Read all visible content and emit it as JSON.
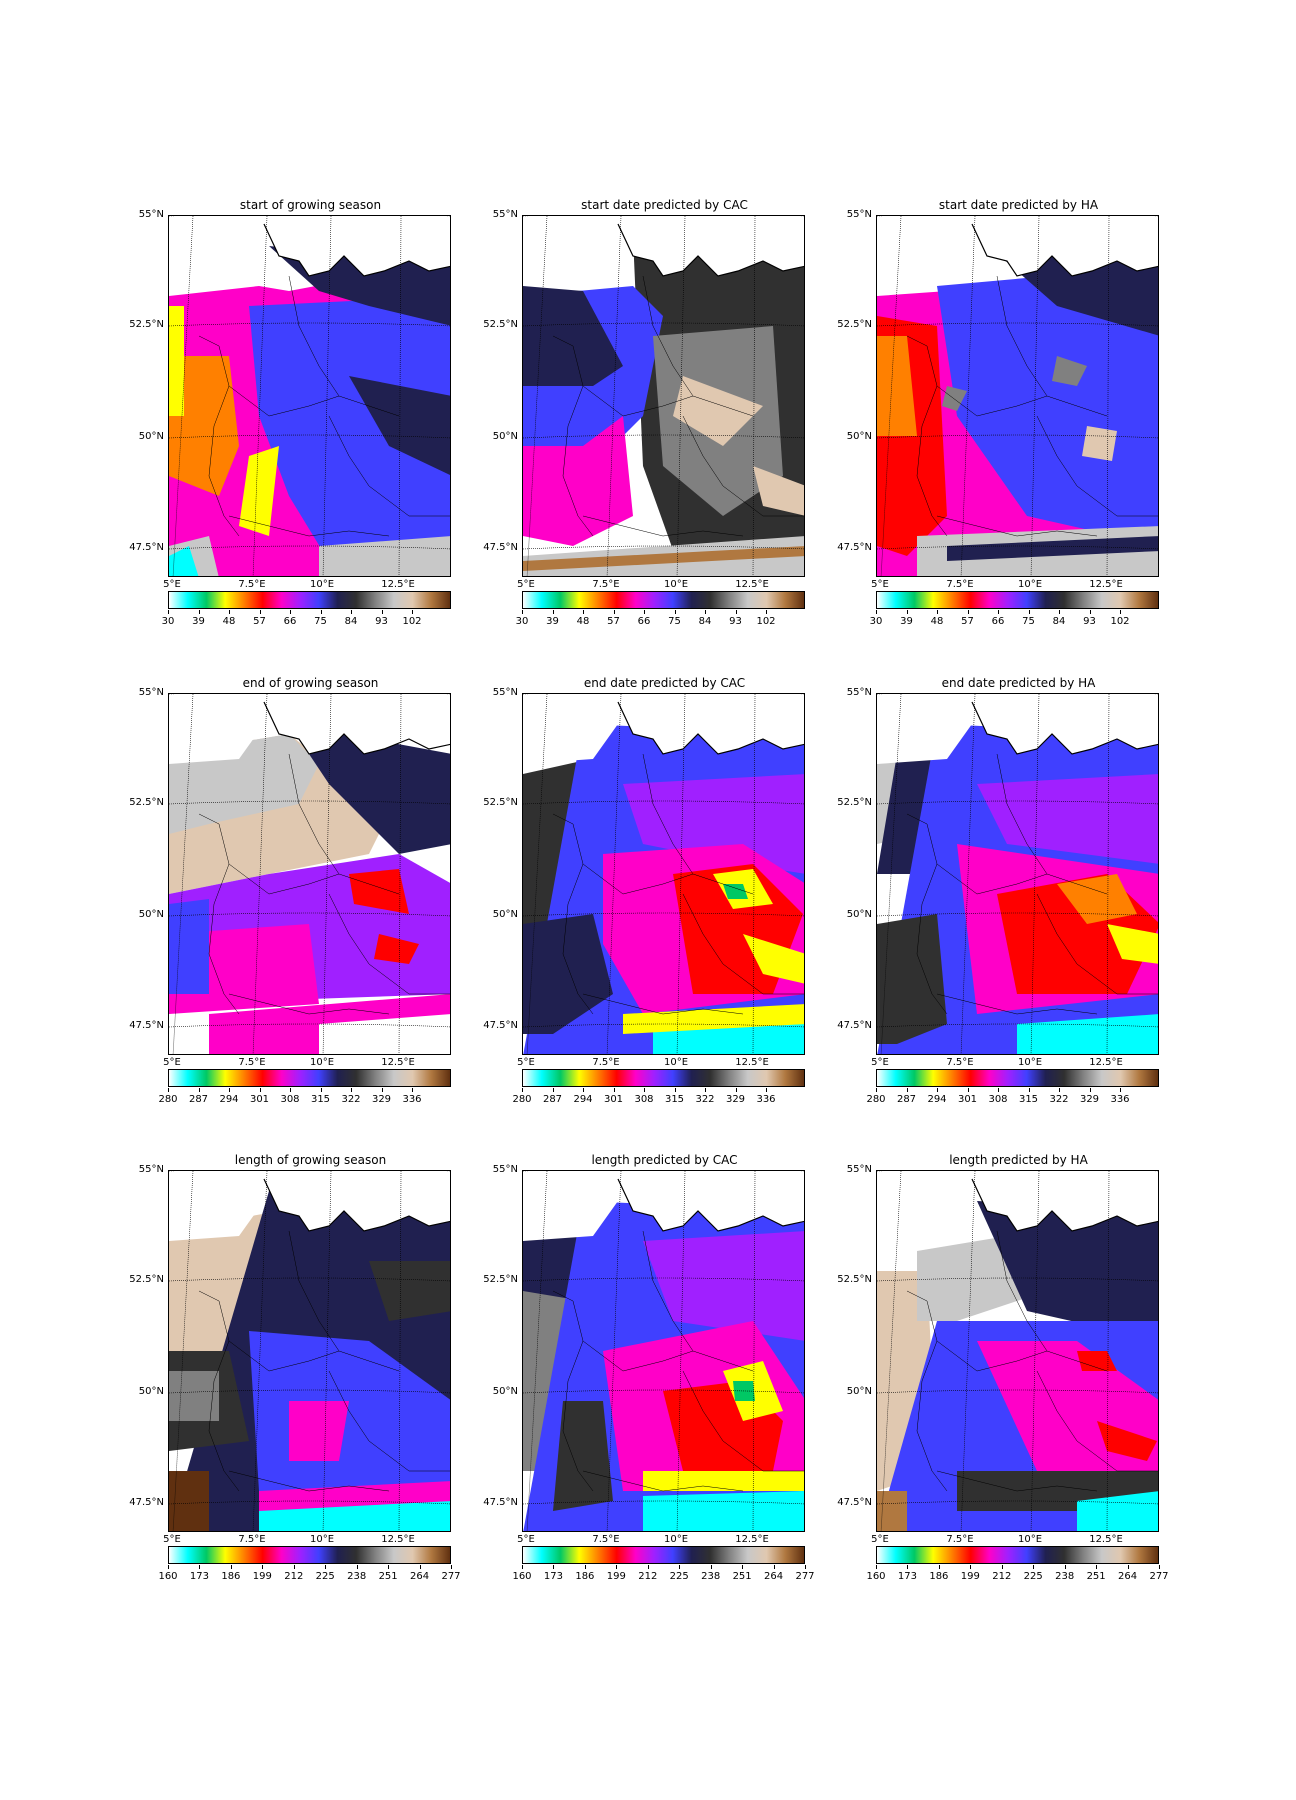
{
  "chart_data": [
    {
      "type": "heatmap",
      "title": "start of growing season",
      "colorbar_ticks": [
        "30",
        "39",
        "48",
        "57",
        "66",
        "75",
        "84",
        "93",
        "102"
      ],
      "lat_ticks": [
        "55°N",
        "52.5°N",
        "50°N",
        "47.5°N"
      ],
      "lon_ticks": [
        "5°E",
        "7.5°E",
        "10°E",
        "12.5°E"
      ]
    },
    {
      "type": "heatmap",
      "title": "start date predicted by CAC",
      "colorbar_ticks": [
        "30",
        "39",
        "48",
        "57",
        "66",
        "75",
        "84",
        "93",
        "102"
      ],
      "lat_ticks": [
        "55°N",
        "52.5°N",
        "50°N",
        "47.5°N"
      ],
      "lon_ticks": [
        "5°E",
        "7.5°E",
        "10°E",
        "12.5°E"
      ]
    },
    {
      "type": "heatmap",
      "title": "start date predicted by HA",
      "colorbar_ticks": [
        "30",
        "39",
        "48",
        "57",
        "66",
        "75",
        "84",
        "93",
        "102"
      ],
      "lat_ticks": [
        "55°N",
        "52.5°N",
        "50°N",
        "47.5°N"
      ],
      "lon_ticks": [
        "5°E",
        "7.5°E",
        "10°E",
        "12.5°E"
      ]
    },
    {
      "type": "heatmap",
      "title": "end of growing season",
      "colorbar_ticks": [
        "280",
        "287",
        "294",
        "301",
        "308",
        "315",
        "322",
        "329",
        "336"
      ],
      "lat_ticks": [
        "55°N",
        "52.5°N",
        "50°N",
        "47.5°N"
      ],
      "lon_ticks": [
        "5°E",
        "7.5°E",
        "10°E",
        "12.5°E"
      ]
    },
    {
      "type": "heatmap",
      "title": "end date predicted by CAC",
      "colorbar_ticks": [
        "280",
        "287",
        "294",
        "301",
        "308",
        "315",
        "322",
        "329",
        "336"
      ],
      "lat_ticks": [
        "55°N",
        "52.5°N",
        "50°N",
        "47.5°N"
      ],
      "lon_ticks": [
        "5°E",
        "7.5°E",
        "10°E",
        "12.5°E"
      ]
    },
    {
      "type": "heatmap",
      "title": "end date predicted by HA",
      "colorbar_ticks": [
        "280",
        "287",
        "294",
        "301",
        "308",
        "315",
        "322",
        "329",
        "336"
      ],
      "lat_ticks": [
        "55°N",
        "52.5°N",
        "50°N",
        "47.5°N"
      ],
      "lon_ticks": [
        "5°E",
        "7.5°E",
        "10°E",
        "12.5°E"
      ]
    },
    {
      "type": "heatmap",
      "title": "length of growing season",
      "colorbar_ticks": [
        "160",
        "173",
        "186",
        "199",
        "212",
        "225",
        "238",
        "251",
        "264",
        "277"
      ],
      "lat_ticks": [
        "55°N",
        "52.5°N",
        "50°N",
        "47.5°N"
      ],
      "lon_ticks": [
        "5°E",
        "7.5°E",
        "10°E",
        "12.5°E"
      ]
    },
    {
      "type": "heatmap",
      "title": "length predicted by CAC",
      "colorbar_ticks": [
        "160",
        "173",
        "186",
        "199",
        "212",
        "225",
        "238",
        "251",
        "264",
        "277"
      ],
      "lat_ticks": [
        "55°N",
        "52.5°N",
        "50°N",
        "47.5°N"
      ],
      "lon_ticks": [
        "5°E",
        "7.5°E",
        "10°E",
        "12.5°E"
      ]
    },
    {
      "type": "heatmap",
      "title": "length predicted by HA",
      "colorbar_ticks": [
        "160",
        "173",
        "186",
        "199",
        "212",
        "225",
        "238",
        "251",
        "264",
        "277"
      ],
      "lat_ticks": [
        "55°N",
        "52.5°N",
        "50°N",
        "47.5°N"
      ],
      "lon_ticks": [
        "5°E",
        "7.5°E",
        "10°E",
        "12.5°E"
      ]
    }
  ],
  "colormap": [
    "#ffffff",
    "#00ffff",
    "#00c864",
    "#ffff00",
    "#ff8000",
    "#ff0000",
    "#ff00c8",
    "#a020ff",
    "#4040ff",
    "#202050",
    "#303030",
    "#808080",
    "#c8c8c8",
    "#e0c8b0",
    "#b07840",
    "#603010"
  ]
}
